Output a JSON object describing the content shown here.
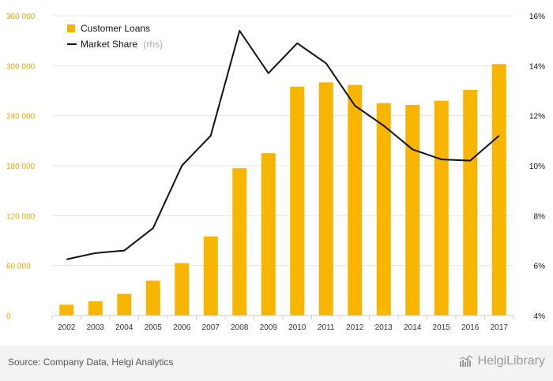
{
  "source_label": "Source: Company Data, Helgi Analytics",
  "brand_label": "HelgiLibrary",
  "chart_data": {
    "type": "bar",
    "categories": [
      "2002",
      "2003",
      "2004",
      "2005",
      "2006",
      "2007",
      "2008",
      "2009",
      "2010",
      "2011",
      "2012",
      "2013",
      "2014",
      "2015",
      "2016",
      "2017"
    ],
    "series": [
      {
        "name": "Customer Loans",
        "type": "bar",
        "axis": "left",
        "color": "#f7b500",
        "values": [
          13000,
          17000,
          26000,
          42000,
          63000,
          95000,
          177000,
          195000,
          275000,
          280000,
          277000,
          255000,
          253000,
          258000,
          271000,
          302000
        ]
      },
      {
        "name": "Market Share",
        "legend_suffix": "(rhs)",
        "type": "line",
        "axis": "right",
        "color": "#111111",
        "values": [
          6.25,
          6.5,
          6.6,
          7.5,
          10.0,
          11.2,
          15.4,
          13.7,
          14.9,
          14.1,
          12.4,
          11.6,
          10.65,
          10.25,
          10.2,
          11.2
        ]
      }
    ],
    "left_axis": {
      "ylim": [
        0,
        360000
      ],
      "ticks": [
        0,
        60000,
        120000,
        180000,
        240000,
        300000,
        360000
      ],
      "tick_labels": [
        "0",
        "60 000",
        "120 000",
        "180 000",
        "240 000",
        "300 000",
        "360 000"
      ],
      "color": "#e6a700"
    },
    "right_axis": {
      "ylim": [
        4,
        16
      ],
      "ticks": [
        4,
        6,
        8,
        10,
        12,
        14,
        16
      ],
      "tick_labels": [
        "4%",
        "6%",
        "8%",
        "10%",
        "12%",
        "14%",
        "16%"
      ]
    },
    "grid": true,
    "legend_position": "top-left"
  }
}
